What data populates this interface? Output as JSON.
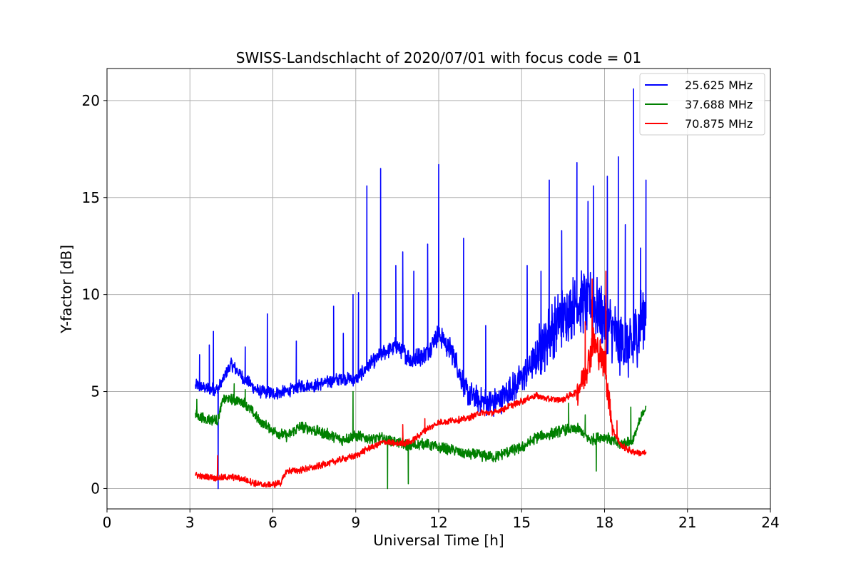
{
  "chart_data": {
    "type": "line",
    "title": "SWISS-Landschlacht of 2020/07/01 with focus code = 01",
    "xlabel": "Universal Time [h]",
    "ylabel": "Y-factor [dB]",
    "xlim": [
      0,
      24
    ],
    "ylim": [
      -1.05,
      21.65
    ],
    "xticks": [
      0,
      3,
      6,
      9,
      12,
      15,
      18,
      21,
      24
    ],
    "yticks": [
      0,
      5,
      10,
      15,
      20
    ],
    "grid": true,
    "legend_position": "top-right",
    "series": [
      {
        "name": "25.625 MHz",
        "color": "#0000ff",
        "x": [
          3.2,
          3.5,
          4.0,
          4.5,
          5.0,
          5.5,
          6.0,
          6.5,
          7.0,
          7.5,
          8.0,
          8.5,
          9.0,
          9.5,
          10.0,
          10.5,
          11.0,
          11.5,
          12.0,
          12.5,
          13.0,
          13.5,
          14.0,
          14.5,
          15.0,
          15.5,
          16.0,
          16.5,
          17.0,
          17.5,
          18.0,
          18.5,
          19.0,
          19.5
        ],
        "y": [
          5.3,
          5.2,
          5.1,
          6.4,
          5.6,
          5.0,
          4.9,
          5.0,
          5.3,
          5.3,
          5.5,
          5.7,
          5.6,
          6.4,
          7.0,
          7.4,
          6.6,
          6.9,
          8.0,
          7.0,
          5.0,
          4.5,
          4.4,
          4.9,
          5.7,
          6.7,
          8.0,
          8.9,
          9.6,
          9.6,
          8.9,
          7.6,
          7.2,
          9.5
        ],
        "spikes": [
          [
            3.35,
            6.9
          ],
          [
            3.7,
            7.4
          ],
          [
            3.85,
            8.1
          ],
          [
            4.02,
            0.0
          ],
          [
            5.0,
            7.3
          ],
          [
            5.8,
            9.0
          ],
          [
            6.85,
            7.6
          ],
          [
            8.2,
            9.4
          ],
          [
            8.55,
            8.0
          ],
          [
            8.9,
            10.0
          ],
          [
            9.1,
            10.1
          ],
          [
            9.4,
            15.6
          ],
          [
            9.9,
            16.5
          ],
          [
            10.45,
            11.5
          ],
          [
            10.7,
            12.2
          ],
          [
            11.1,
            11.2
          ],
          [
            11.6,
            12.6
          ],
          [
            12.0,
            16.7
          ],
          [
            12.9,
            12.9
          ],
          [
            13.7,
            8.4
          ],
          [
            15.2,
            11.5
          ],
          [
            15.7,
            11.2
          ],
          [
            16.0,
            15.9
          ],
          [
            16.45,
            13.3
          ],
          [
            17.0,
            16.8
          ],
          [
            17.4,
            14.8
          ],
          [
            17.6,
            15.6
          ],
          [
            18.1,
            16.1
          ],
          [
            18.5,
            17.1
          ],
          [
            18.75,
            13.6
          ],
          [
            19.05,
            20.6
          ],
          [
            19.3,
            12.4
          ],
          [
            19.5,
            15.9
          ]
        ]
      },
      {
        "name": "37.688 MHz",
        "color": "#008000",
        "x": [
          3.2,
          3.5,
          4.0,
          4.2,
          4.5,
          5.0,
          5.5,
          6.0,
          6.5,
          7.0,
          7.5,
          8.0,
          8.5,
          9.0,
          9.5,
          10.0,
          10.5,
          11.0,
          11.5,
          12.0,
          12.5,
          13.0,
          13.5,
          14.0,
          14.5,
          15.0,
          15.5,
          16.0,
          16.5,
          17.0,
          17.5,
          18.0,
          18.5,
          19.0,
          19.5
        ],
        "y": [
          3.8,
          3.6,
          3.5,
          4.6,
          4.6,
          4.4,
          3.5,
          3.0,
          2.7,
          3.2,
          3.0,
          2.8,
          2.5,
          2.7,
          2.6,
          2.6,
          2.4,
          2.2,
          2.3,
          2.1,
          2.0,
          1.8,
          1.7,
          1.6,
          1.9,
          2.1,
          2.6,
          2.8,
          3.0,
          3.1,
          2.5,
          2.7,
          2.3,
          2.4,
          4.3
        ],
        "spikes": [
          [
            3.25,
            4.6
          ],
          [
            4.6,
            5.4
          ],
          [
            5.0,
            5.1
          ],
          [
            8.9,
            5.0
          ],
          [
            10.15,
            0.0
          ],
          [
            10.9,
            0.25
          ],
          [
            16.7,
            4.4
          ],
          [
            17.3,
            3.8
          ],
          [
            17.7,
            0.9
          ],
          [
            18.95,
            4.2
          ]
        ]
      },
      {
        "name": "70.875 MHz",
        "color": "#ff0000",
        "x": [
          3.2,
          3.5,
          4.0,
          4.5,
          5.0,
          5.5,
          6.0,
          6.3,
          6.5,
          7.0,
          7.5,
          8.0,
          8.5,
          9.0,
          9.5,
          10.0,
          10.5,
          11.0,
          11.5,
          12.0,
          12.5,
          13.0,
          13.5,
          14.0,
          14.5,
          15.0,
          15.5,
          16.0,
          16.5,
          17.0,
          17.3,
          17.6,
          18.0,
          18.3,
          18.6,
          19.0,
          19.5
        ],
        "y": [
          0.7,
          0.6,
          0.55,
          0.6,
          0.45,
          0.2,
          0.2,
          0.3,
          0.9,
          0.95,
          1.1,
          1.3,
          1.5,
          1.7,
          2.1,
          2.4,
          2.3,
          2.4,
          3.0,
          3.4,
          3.5,
          3.6,
          3.9,
          3.9,
          4.2,
          4.5,
          4.8,
          4.6,
          4.6,
          5.0,
          6.0,
          7.5,
          6.5,
          3.0,
          2.2,
          1.9,
          1.8
        ],
        "spikes": [
          [
            4.0,
            1.7
          ],
          [
            10.7,
            3.3
          ],
          [
            11.5,
            3.6
          ],
          [
            17.3,
            8.6
          ],
          [
            17.55,
            10.8
          ],
          [
            17.85,
            7.7
          ],
          [
            18.05,
            11.2
          ],
          [
            18.2,
            4.6
          ],
          [
            18.45,
            3.5
          ]
        ]
      }
    ]
  }
}
